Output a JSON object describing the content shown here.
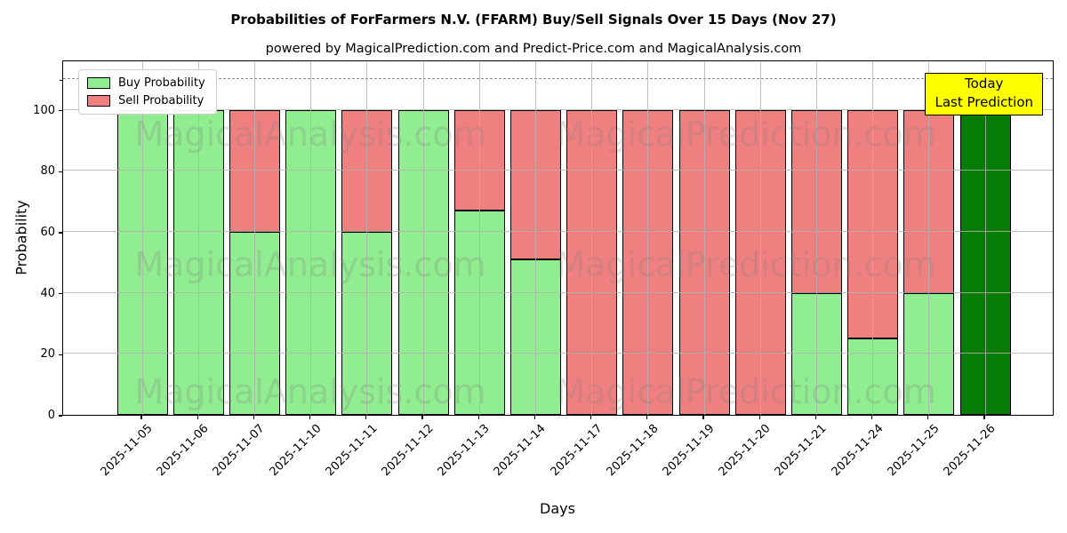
{
  "title": "Probabilities of ForFarmers N.V. (FFARM) Buy/Sell Signals Over 15 Days (Nov 27)",
  "subtitle": "powered by MagicalPrediction.com and Predict-Price.com and MagicalAnalysis.com",
  "watermark": {
    "left": "MagicalAnalysis.com",
    "right": "MagicalPrediction.com"
  },
  "annotation": {
    "line1": "Today",
    "line2": "Last Prediction",
    "bg_color": "#ffff00"
  },
  "legend": {
    "items": [
      {
        "label": "Buy Probability",
        "color": "#90ee90"
      },
      {
        "label": "Sell Probability",
        "color": "#f08080"
      }
    ]
  },
  "colors": {
    "buy": "#90ee90",
    "sell": "#f08080",
    "today": "#067d06",
    "bar_edge": "#000000",
    "grid": "#b0b0b0",
    "annotation_bg": "#ffff00"
  },
  "chart_data": {
    "type": "bar",
    "stacked": true,
    "title": "Probabilities of ForFarmers N.V. (FFARM) Buy/Sell Signals Over 15 Days (Nov 27)",
    "xlabel": "Days",
    "ylabel": "Probability",
    "ylim": [
      0,
      116.5
    ],
    "yticks": [
      0,
      20,
      40,
      60,
      80,
      100
    ],
    "dashed_line_y": 110,
    "grid": true,
    "legend_position": "upper left",
    "categories": [
      "2025-11-05",
      "2025-11-06",
      "2025-11-07",
      "2025-11-10",
      "2025-11-11",
      "2025-11-12",
      "2025-11-13",
      "2025-11-14",
      "2025-11-17",
      "2025-11-18",
      "2025-11-19",
      "2025-11-20",
      "2025-11-21",
      "2025-11-24",
      "2025-11-25",
      "2025-11-26"
    ],
    "series": [
      {
        "name": "Buy Probability",
        "color": "#90ee90",
        "values": [
          100,
          100,
          60,
          100,
          60,
          100,
          67,
          51,
          0,
          0,
          0,
          0,
          40,
          25,
          40,
          0
        ]
      },
      {
        "name": "Sell Probability",
        "color": "#f08080",
        "values": [
          0,
          0,
          40,
          0,
          40,
          0,
          33,
          49,
          100,
          100,
          100,
          100,
          60,
          75,
          60,
          0
        ]
      },
      {
        "name": "Today Last Prediction",
        "color": "#067d06",
        "values": [
          0,
          0,
          0,
          0,
          0,
          0,
          0,
          0,
          0,
          0,
          0,
          0,
          0,
          0,
          0,
          100
        ]
      }
    ]
  }
}
